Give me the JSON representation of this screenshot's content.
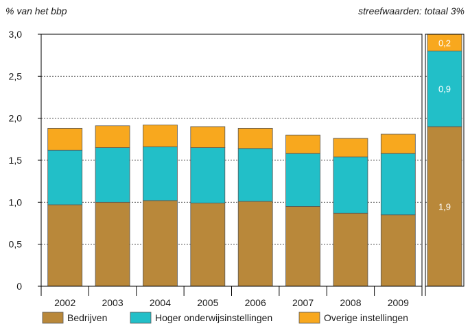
{
  "chart_data": {
    "type": "bar",
    "stacked": true,
    "header_left": "% van het bbp",
    "header_right": "streefwaarden: totaal 3%",
    "categories": [
      "2002",
      "2003",
      "2004",
      "2005",
      "2006",
      "2007",
      "2008",
      "2009"
    ],
    "series": [
      {
        "name": "Bedrijven",
        "color": "#b9883a",
        "values": [
          0.97,
          1.0,
          1.02,
          0.99,
          1.01,
          0.95,
          0.87,
          0.85
        ]
      },
      {
        "name": "Hoger onderwijsinstellingen",
        "color": "#22bfc8",
        "values": [
          0.65,
          0.65,
          0.64,
          0.66,
          0.63,
          0.63,
          0.67,
          0.73
        ]
      },
      {
        "name": "Overige instellingen",
        "color": "#f8a81e",
        "values": [
          0.26,
          0.26,
          0.26,
          0.25,
          0.24,
          0.22,
          0.22,
          0.23
        ]
      }
    ],
    "target": {
      "values": [
        1.9,
        0.9,
        0.2
      ],
      "labels": [
        "1,9",
        "0,9",
        "0,2"
      ]
    },
    "yaxis": {
      "ylim": [
        0,
        3.0
      ],
      "ticks": [
        0,
        0.5,
        1.0,
        1.5,
        2.0,
        2.5,
        3.0
      ],
      "tick_labels": [
        "0",
        "0,5",
        "1,0",
        "1,5",
        "2,0",
        "2,5",
        "3,0"
      ]
    },
    "grid": {
      "y": true,
      "style": "dotted",
      "from": 2.0
    },
    "legend": "bottom"
  }
}
